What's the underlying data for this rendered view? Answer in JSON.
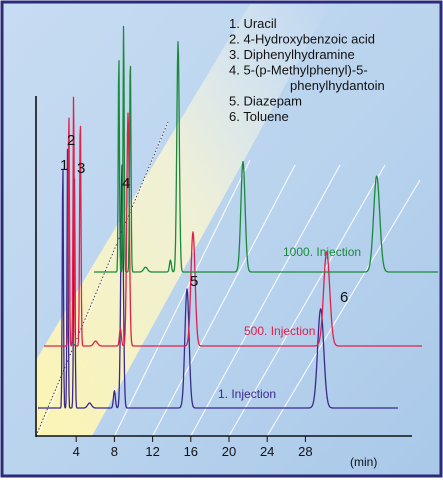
{
  "chart_data": {
    "type": "line",
    "xlabel": "(min)",
    "x_ticks": [
      4,
      8,
      12,
      16,
      20,
      24,
      28
    ],
    "xlim": [
      0,
      38
    ],
    "grid": false,
    "legend": {
      "placement": "top-right",
      "entries": [
        "1.  Uracil",
        "2.  4-Hydroxybenzoic acid",
        "3.  Diphenylhydramine",
        "4.  5-(p-Methylphenyl)-5-",
        "phenylhydantoin",
        "5.  Diazepam",
        "6.  Toluene"
      ]
    },
    "peak_labels": [
      "1",
      "2",
      "3",
      "4",
      "5",
      "6"
    ],
    "series": [
      {
        "name": "1. Injection",
        "color": "#3a2a8c",
        "peaks": [
          {
            "t": 2.6,
            "h": 1.0,
            "w": 0.06
          },
          {
            "t": 3.1,
            "h": 1.06,
            "w": 0.06
          },
          {
            "t": 3.8,
            "h": 0.97,
            "w": 0.07
          },
          {
            "t": 5.4,
            "h": 0.02,
            "w": 0.2
          },
          {
            "t": 8.0,
            "h": 0.07,
            "w": 0.1
          },
          {
            "t": 8.8,
            "h": 0.98,
            "w": 0.13
          },
          {
            "t": 15.6,
            "h": 0.48,
            "w": 0.22
          },
          {
            "t": 29.6,
            "h": 0.4,
            "w": 0.32
          }
        ]
      },
      {
        "name": "500. Injection",
        "color": "#e0204a",
        "peaks": [
          {
            "t": 2.6,
            "h": 0.96,
            "w": 0.06
          },
          {
            "t": 3.1,
            "h": 1.02,
            "w": 0.06
          },
          {
            "t": 3.8,
            "h": 0.93,
            "w": 0.07
          },
          {
            "t": 5.4,
            "h": 0.02,
            "w": 0.2
          },
          {
            "t": 8.0,
            "h": 0.07,
            "w": 0.1
          },
          {
            "t": 8.8,
            "h": 0.94,
            "w": 0.13
          },
          {
            "t": 15.6,
            "h": 0.46,
            "w": 0.22
          },
          {
            "t": 29.6,
            "h": 0.38,
            "w": 0.32
          }
        ]
      },
      {
        "name": "1000. Injection",
        "color": "#1a8a3a",
        "peaks": [
          {
            "t": 2.6,
            "h": 0.92,
            "w": 0.06
          },
          {
            "t": 3.1,
            "h": 1.04,
            "w": 0.06
          },
          {
            "t": 3.8,
            "h": 0.9,
            "w": 0.07
          },
          {
            "t": 5.4,
            "h": 0.02,
            "w": 0.2
          },
          {
            "t": 8.0,
            "h": 0.05,
            "w": 0.1
          },
          {
            "t": 8.8,
            "h": 0.96,
            "w": 0.13
          },
          {
            "t": 15.6,
            "h": 0.46,
            "w": 0.22
          },
          {
            "t": 29.6,
            "h": 0.4,
            "w": 0.32
          }
        ]
      }
    ]
  },
  "colors": {
    "border": "#2a2a7a",
    "background_top": "#b9d3ee",
    "highlight": "#fff7c2",
    "guide": "#ffffff",
    "axis": "#111111"
  }
}
